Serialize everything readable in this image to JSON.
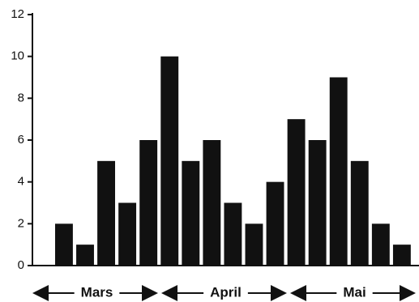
{
  "chart_data": {
    "type": "bar",
    "categories": [
      null,
      null,
      null,
      null,
      null,
      null,
      null,
      null,
      null,
      null,
      null,
      null,
      null,
      null,
      null,
      null,
      null
    ],
    "values": [
      2,
      1,
      5,
      3,
      6,
      10,
      5,
      6,
      3,
      2,
      4,
      7,
      6,
      9,
      5,
      2,
      1
    ],
    "color": "#111111",
    "x_groups": [
      "Mars",
      "April",
      "Mai"
    ],
    "ylim": [
      0,
      12
    ],
    "yticks": [
      0,
      2,
      4,
      6,
      8,
      10,
      12
    ],
    "grid": false
  }
}
